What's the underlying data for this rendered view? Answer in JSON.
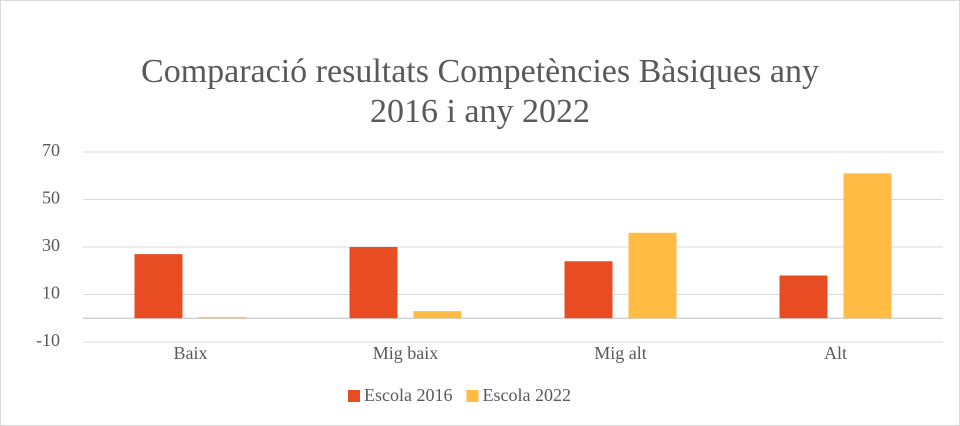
{
  "chart_data": {
    "type": "bar",
    "title": "Comparació resultats Competències Bàsiques any 2016 i any 2022",
    "categories": [
      "Baix",
      "Mig baix",
      "Mig alt",
      "Alt"
    ],
    "series": [
      {
        "name": "Escola 2016",
        "color": "#e84c22",
        "values": [
          27,
          30,
          24,
          18
        ]
      },
      {
        "name": "Escola 2022",
        "color": "#ffbb44",
        "values": [
          0.5,
          3,
          36,
          61
        ]
      }
    ],
    "ylim": [
      -10,
      70
    ],
    "yticks": [
      -10,
      10,
      30,
      50,
      70
    ],
    "grid": true,
    "legend": "bottom"
  }
}
